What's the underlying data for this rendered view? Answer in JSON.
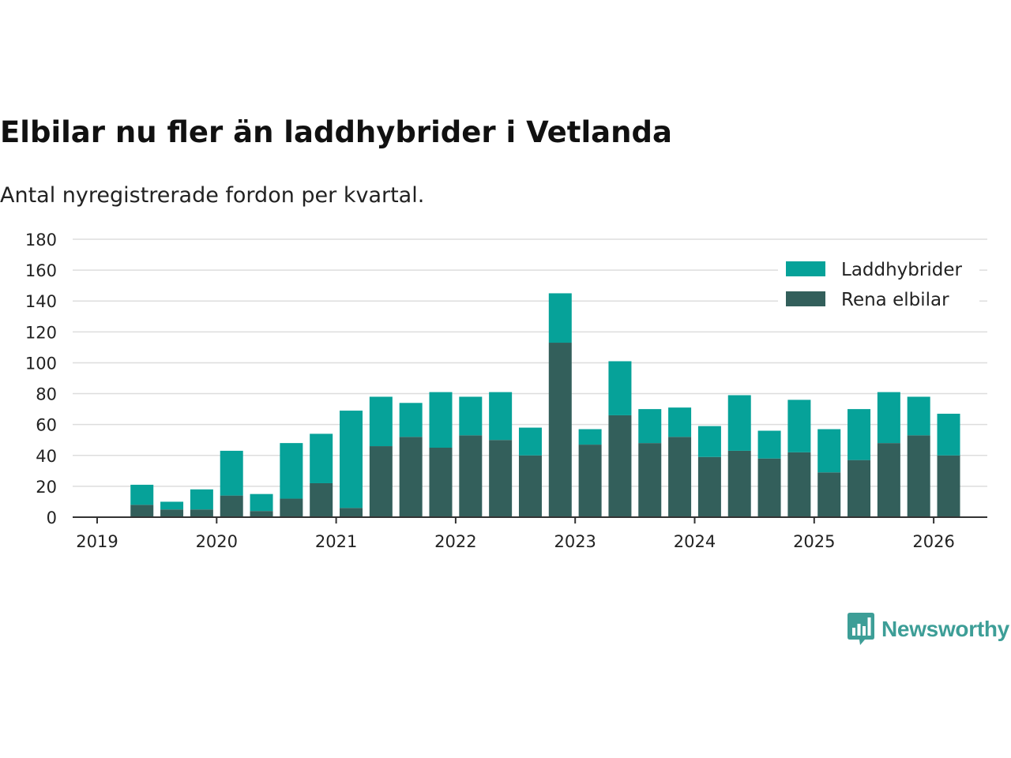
{
  "title": "Elbilar nu fler än laddhybrider i Vetlanda",
  "subtitle": "Antal nyregistrerade fordon per kvartal.",
  "brand": {
    "name": "Newsworthy",
    "color": "#3d9e97"
  },
  "chart_data": {
    "type": "bar",
    "stacked": true,
    "title": "Elbilar nu fler än laddhybrider i Vetlanda",
    "subtitle": "Antal nyregistrerade fordon per kvartal.",
    "xlabel": "",
    "ylabel": "",
    "ylim": [
      0,
      180
    ],
    "y_ticks": [
      0,
      20,
      40,
      60,
      80,
      100,
      120,
      140,
      160,
      180
    ],
    "x_tick_labels": [
      "2019",
      "2020",
      "2021",
      "2022",
      "2023",
      "2024",
      "2025",
      "2026"
    ],
    "grid": true,
    "legend_position": "top-right",
    "categories": [
      "2019 Q2",
      "2019 Q3",
      "2019 Q4",
      "2020 Q1",
      "2020 Q2",
      "2020 Q3",
      "2020 Q4",
      "2021 Q1",
      "2021 Q2",
      "2021 Q3",
      "2021 Q4",
      "2022 Q1",
      "2022 Q2",
      "2022 Q3",
      "2022 Q4",
      "2023 Q1",
      "2023 Q2",
      "2023 Q3",
      "2023 Q4",
      "2024 Q1",
      "2024 Q2",
      "2024 Q3",
      "2024 Q4",
      "2025 Q1",
      "2025 Q2",
      "2025 Q3",
      "2025 Q4",
      "2026 Q1"
    ],
    "series": [
      {
        "name": "Rena elbilar",
        "color": "#335f5b",
        "values": [
          8,
          5,
          5,
          14,
          4,
          12,
          22,
          6,
          46,
          52,
          45,
          53,
          50,
          40,
          113,
          47,
          66,
          48,
          52,
          39,
          43,
          38,
          42,
          29,
          37,
          48,
          53,
          40
        ]
      },
      {
        "name": "Laddhybrider",
        "color": "#06a299",
        "values": [
          13,
          5,
          13,
          29,
          11,
          36,
          32,
          63,
          32,
          22,
          36,
          25,
          31,
          18,
          32,
          10,
          35,
          22,
          19,
          20,
          36,
          18,
          34,
          28,
          33,
          33,
          25,
          27
        ]
      }
    ],
    "legend": [
      {
        "label": "Laddhybrider",
        "color": "#06a299"
      },
      {
        "label": "Rena elbilar",
        "color": "#335f5b"
      }
    ]
  }
}
